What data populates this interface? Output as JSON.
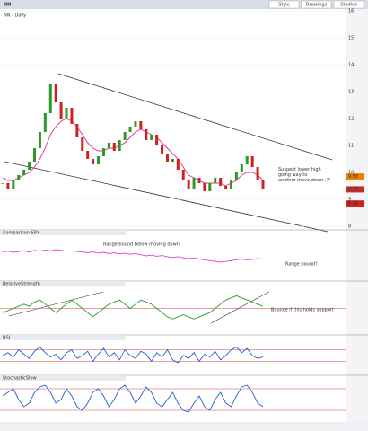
{
  "toolbar": {
    "symbol": "NN",
    "buttons": [
      "Style",
      "Drawings",
      "Studies"
    ]
  },
  "price": {
    "label": "NN - Daily",
    "ylim": [
      8,
      16
    ],
    "yticks": [
      8,
      9,
      10,
      11,
      12,
      13,
      14,
      15,
      16
    ],
    "values": [
      9.6,
      9.4,
      9.7,
      9.9,
      10.1,
      10.4,
      10.9,
      11.5,
      12.2,
      13.3,
      12.6,
      12.0,
      12.4,
      11.8,
      11.3,
      10.8,
      10.5,
      10.3,
      10.6,
      10.9,
      11.1,
      10.8,
      11.2,
      11.5,
      11.7,
      11.9,
      11.6,
      11.2,
      11.4,
      11.0,
      10.7,
      10.4,
      10.5,
      10.1,
      9.7,
      9.4,
      9.8,
      9.6,
      9.3,
      9.6,
      9.8,
      9.5,
      9.4,
      9.7,
      10.0,
      10.3,
      10.6,
      10.2,
      9.7,
      9.4
    ],
    "ma": [
      9.8,
      9.7,
      9.7,
      9.8,
      9.9,
      10.0,
      10.2,
      10.5,
      10.9,
      11.4,
      11.7,
      11.9,
      12.0,
      11.9,
      11.7,
      11.4,
      11.1,
      10.9,
      10.8,
      10.8,
      10.9,
      10.9,
      11.0,
      11.1,
      11.3,
      11.5,
      11.6,
      11.5,
      11.4,
      11.3,
      11.1,
      10.9,
      10.7,
      10.5,
      10.2,
      9.9,
      9.8,
      9.7,
      9.6,
      9.6,
      9.6,
      9.6,
      9.5,
      9.6,
      9.7,
      9.9,
      10.0,
      10.0,
      9.9,
      9.7
    ],
    "price_labels": [
      9.58,
      9.37,
      9.11
    ],
    "annotation": "Suspect lower high going way to another move down..?!"
  },
  "panels": [
    {
      "label": "Comparison SPX",
      "ylim": [
        0,
        10
      ],
      "levels": [],
      "color": "#e040d0",
      "values": [
        6,
        6.2,
        5.9,
        6.1,
        6.3,
        6.0,
        6.4,
        6.2,
        6.5,
        6.3,
        6.6,
        6.4,
        6.2,
        6.3,
        6.1,
        6.0,
        5.8,
        6.0,
        5.7,
        5.9,
        5.6,
        5.8,
        5.5,
        5.7,
        5.4,
        5.6,
        5.3,
        5.0,
        5.2,
        4.9,
        5.1,
        4.8,
        4.6,
        4.8,
        4.5,
        4.3,
        4.5,
        4.2,
        4.0,
        3.8,
        3.6,
        3.4,
        3.6,
        3.8,
        4.0,
        4.2,
        4.0,
        4.1,
        4.3,
        4.2
      ],
      "annotations": [
        "Range bound below moving down",
        "Range bound?"
      ]
    },
    {
      "label": "RelativeStrength",
      "ylim": [
        0,
        10
      ],
      "levels": [
        5
      ],
      "color": "#2a9a2a",
      "values": [
        4,
        4.5,
        5,
        5.5,
        6,
        5.5,
        6.5,
        7,
        6,
        5,
        4,
        5,
        6,
        7,
        6,
        5,
        4,
        3,
        4,
        5,
        6,
        6.5,
        7,
        6,
        5,
        6,
        7,
        6.5,
        6,
        5,
        4,
        3,
        2.5,
        3,
        3.5,
        3,
        2.5,
        3,
        3.5,
        4,
        5,
        6,
        7,
        7.5,
        8,
        7.5,
        7,
        6.5,
        6,
        5.5
      ],
      "annotations": [
        "Bounce if this holds support"
      ]
    },
    {
      "label": "RSI",
      "ylim": [
        0,
        100
      ],
      "levels": [
        30,
        70
      ],
      "color": "#2060d0",
      "values": [
        50,
        60,
        45,
        70,
        55,
        40,
        65,
        80,
        60,
        45,
        55,
        35,
        60,
        70,
        40,
        50,
        65,
        30,
        55,
        75,
        45,
        60,
        35,
        70,
        50,
        40,
        65,
        55,
        30,
        60,
        45,
        70,
        35,
        25,
        50,
        40,
        60,
        30,
        55,
        45,
        65,
        35,
        50,
        70,
        80,
        60,
        75,
        50,
        40,
        45
      ],
      "annotations": []
    },
    {
      "label": "StochasticSlow",
      "ylim": [
        0,
        100
      ],
      "levels": [
        20,
        80
      ],
      "color": "#2060d0",
      "values": [
        60,
        70,
        80,
        50,
        30,
        40,
        70,
        85,
        90,
        70,
        40,
        50,
        80,
        60,
        30,
        20,
        40,
        70,
        80,
        60,
        30,
        50,
        80,
        90,
        70,
        40,
        60,
        85,
        70,
        40,
        30,
        50,
        70,
        40,
        20,
        15,
        40,
        60,
        30,
        20,
        50,
        70,
        40,
        30,
        60,
        85,
        90,
        70,
        40,
        30
      ],
      "annotations": []
    }
  ]
}
